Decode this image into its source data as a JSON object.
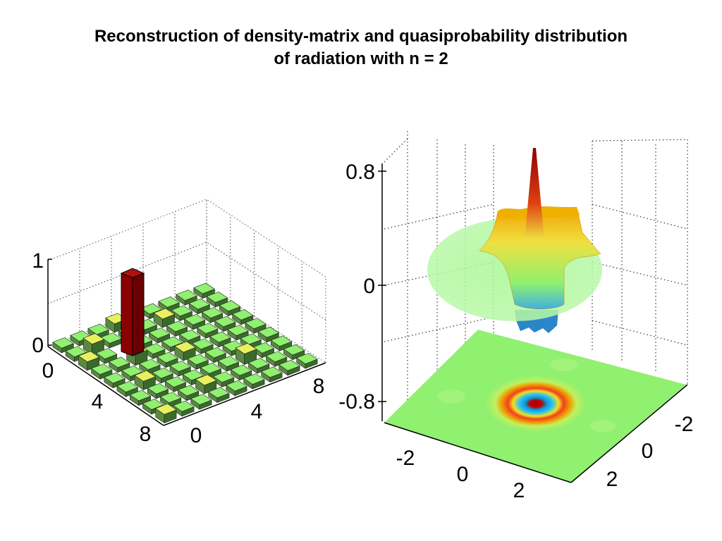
{
  "slide": {
    "title_line1": "Reconstruction of density-matrix and quasiprobability distribution",
    "title_line2": "of radiation with n = 2"
  },
  "chart_data": [
    {
      "type": "bar3d",
      "z_ticks": [
        "0",
        "1"
      ],
      "x_ticks": [
        "0",
        "4",
        "8"
      ],
      "y_ticks": [
        "0",
        "4",
        "8"
      ],
      "zlim": [
        0,
        1
      ],
      "grid": true,
      "matrix_size": 9,
      "peak": {
        "row": 2,
        "col": 2,
        "value": 1.0
      },
      "elements": [
        {
          "row": 0,
          "col": 3,
          "value": 0.03
        },
        {
          "row": 1,
          "col": 1,
          "value": 0.04
        },
        {
          "row": 1,
          "col": 5,
          "value": 0.03
        },
        {
          "row": 2,
          "col": 0,
          "value": 0.03
        },
        {
          "row": 3,
          "col": 2,
          "value": 0.04
        },
        {
          "row": 4,
          "col": 4,
          "value": 0.03
        },
        {
          "row": 5,
          "col": 1,
          "value": 0.03
        },
        {
          "row": 6,
          "col": 6,
          "value": 0.04
        },
        {
          "row": 7,
          "col": 3,
          "value": 0.03
        },
        {
          "row": 8,
          "col": 0,
          "value": 0.03
        }
      ],
      "colors": {
        "peak": "#8b0000",
        "tile": "#90f070",
        "tile_raised": "#e8f060"
      }
    },
    {
      "type": "surface3d",
      "z_ticks": [
        "-0.8",
        "0",
        "0.8"
      ],
      "x_ticks": [
        "-2",
        "0",
        "2"
      ],
      "y_ticks": [
        "-2",
        "0",
        "2"
      ],
      "zlim": [
        -0.8,
        0.8
      ],
      "xlim": [
        -3,
        3
      ],
      "ylim": [
        -3,
        3
      ],
      "grid": true,
      "projection": "contour map on floor",
      "colors": {
        "high": "#b00000",
        "mid": "#f0c000",
        "zero": "#90f070",
        "low": "#2080d0"
      }
    }
  ]
}
